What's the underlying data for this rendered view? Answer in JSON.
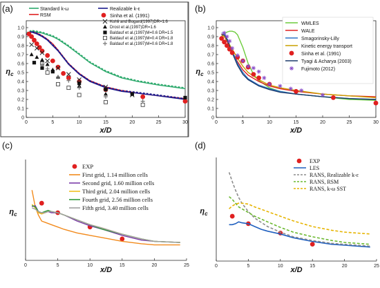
{
  "chart_data": [
    {
      "type": "line",
      "panel_label": "(a)",
      "xlabel": "x/D",
      "ylabel": "ηc",
      "xlim": [
        0,
        30
      ],
      "ylim": [
        0,
        1
      ],
      "xticks": [
        0,
        5,
        10,
        15,
        20,
        25,
        30
      ],
      "yticks": [
        0,
        0.1,
        0.2,
        0.3,
        0.4,
        0.5,
        0.6,
        0.7,
        0.8,
        0.9,
        1
      ],
      "grid": false,
      "legend_position": "top",
      "series": [
        {
          "name": "Standard k-ω",
          "color": "#2aa86a",
          "style": "solid",
          "x": [
            0,
            1,
            2,
            3,
            4,
            5,
            6,
            8,
            10,
            12,
            15,
            18,
            21,
            25,
            30
          ],
          "y": [
            0.93,
            0.96,
            0.95,
            0.94,
            0.92,
            0.9,
            0.87,
            0.79,
            0.7,
            0.61,
            0.51,
            0.44,
            0.4,
            0.36,
            0.32
          ]
        },
        {
          "name": "Standard k-ω (dashed)",
          "color": "#2aa86a",
          "style": "dashed",
          "x": [
            0,
            1,
            2,
            3,
            4,
            5,
            6,
            8,
            10,
            12,
            15,
            18,
            21,
            25,
            30
          ],
          "y": [
            0.94,
            0.97,
            0.96,
            0.95,
            0.93,
            0.91,
            0.88,
            0.8,
            0.71,
            0.62,
            0.52,
            0.45,
            0.41,
            0.37,
            0.33
          ]
        },
        {
          "name": "RSM",
          "color": "#e02020",
          "style": "solid",
          "x": [
            0,
            1,
            2,
            3,
            4,
            5,
            6,
            8,
            10,
            12,
            15,
            18,
            21,
            25,
            30
          ],
          "y": [
            0.92,
            0.95,
            0.94,
            0.91,
            0.87,
            0.82,
            0.75,
            0.6,
            0.49,
            0.41,
            0.34,
            0.3,
            0.27,
            0.24,
            0.21
          ]
        },
        {
          "name": "Realizable k-ε",
          "color": "#1a1a8c",
          "style": "solid",
          "x": [
            0,
            1,
            2,
            3,
            4,
            5,
            6,
            8,
            10,
            12,
            15,
            18,
            21,
            25,
            30
          ],
          "y": [
            0.92,
            0.95,
            0.93,
            0.9,
            0.86,
            0.8,
            0.74,
            0.59,
            0.48,
            0.4,
            0.33,
            0.29,
            0.27,
            0.24,
            0.2
          ]
        },
        {
          "name": "Realizable k-ε (dashed)",
          "color": "#1a1a8c",
          "style": "dashed",
          "x": [
            0,
            1,
            2,
            3,
            4,
            5,
            6,
            8,
            10,
            12,
            15,
            18,
            21,
            25,
            30
          ],
          "y": [
            0.93,
            0.96,
            0.94,
            0.91,
            0.87,
            0.81,
            0.75,
            0.6,
            0.49,
            0.41,
            0.34,
            0.3,
            0.28,
            0.25,
            0.21
          ]
        },
        {
          "name": "Sinha et al. (1991)",
          "marker": "circle",
          "color": "#e02020",
          "x": [
            0.5,
            1,
            1.5,
            2,
            2.5,
            3,
            4,
            5,
            6,
            7,
            8,
            10,
            15,
            22,
            30
          ],
          "y": [
            0.93,
            0.9,
            0.86,
            0.82,
            0.78,
            0.74,
            0.69,
            0.63,
            0.56,
            0.49,
            0.44,
            0.4,
            0.31,
            0.23,
            0.18
          ]
        },
        {
          "name": "Kohli and Bogard(1997) DR=1.6",
          "marker": "x",
          "color": "#222222",
          "x": [
            1,
            2,
            3,
            4,
            6,
            8,
            10,
            15,
            20
          ],
          "y": [
            0.81,
            0.77,
            0.72,
            0.63,
            0.55,
            0.48,
            0.42,
            0.34,
            0.25
          ]
        },
        {
          "name": "Drost et al.(1997) DR=1.6",
          "marker": "triangle",
          "color": "#111111",
          "x": [
            1,
            2,
            3,
            4,
            5,
            6,
            10,
            15
          ],
          "y": [
            0.7,
            0.67,
            0.64,
            0.59,
            0.53,
            0.45,
            0.35,
            0.26
          ]
        },
        {
          "name": "Baldauf et al.(1997) M=0.6 DR=1.5",
          "marker": "square",
          "color": "#111111",
          "x": [
            1.5,
            3,
            5,
            10,
            15,
            20,
            30
          ],
          "y": [
            0.61,
            0.55,
            0.51,
            0.38,
            0.31,
            0.26,
            0.22
          ]
        },
        {
          "name": "Baldauf et al.(1997) M=0.4 DR=1.8",
          "marker": "open-square",
          "color": "#444444",
          "x": [
            3,
            4,
            6,
            8,
            10,
            15,
            22
          ],
          "y": [
            0.6,
            0.5,
            0.37,
            0.33,
            0.25,
            0.17,
            0.14
          ]
        },
        {
          "name": "Baldauf et al.(1997) M=0.6 DR=1.8",
          "marker": "plus",
          "color": "#777777",
          "x": [
            3,
            4,
            6,
            8,
            10,
            15,
            22
          ],
          "y": [
            0.59,
            0.54,
            0.45,
            0.41,
            0.33,
            0.23,
            0.18
          ]
        }
      ]
    },
    {
      "type": "line",
      "panel_label": "(b)",
      "xlabel": "x/D",
      "ylabel": "ηc",
      "xlim": [
        0,
        30
      ],
      "ylim": [
        0,
        1
      ],
      "xticks": [
        0,
        5,
        10,
        15,
        20,
        25,
        30
      ],
      "yticks": [
        0,
        0.1,
        0.2,
        0.3,
        0.4,
        0.5,
        0.6,
        0.7,
        0.8,
        0.9,
        1
      ],
      "grid": false,
      "legend_position": "top-right",
      "series": [
        {
          "name": "WMLES",
          "color": "#6ccc3c",
          "style": "solid",
          "x": [
            1,
            1.5,
            2,
            2.5,
            3,
            3.5,
            4,
            5,
            6,
            7,
            8,
            10,
            12,
            15,
            20,
            25,
            30
          ],
          "y": [
            0.9,
            0.93,
            0.95,
            0.96,
            0.96,
            0.95,
            0.92,
            0.78,
            0.6,
            0.48,
            0.41,
            0.33,
            0.29,
            0.26,
            0.23,
            0.2,
            0.19
          ]
        },
        {
          "name": "WALE",
          "color": "#e02020",
          "style": "solid",
          "x": [
            1,
            1.5,
            2,
            3,
            4,
            5,
            6,
            8,
            10,
            12,
            15,
            20,
            25,
            30
          ],
          "y": [
            0.93,
            0.9,
            0.85,
            0.73,
            0.62,
            0.53,
            0.47,
            0.4,
            0.35,
            0.32,
            0.29,
            0.26,
            0.24,
            0.23
          ]
        },
        {
          "name": "Smagorinsky-Lilly",
          "color": "#2f75c7",
          "style": "solid",
          "x": [
            1,
            1.5,
            2,
            3,
            4,
            5,
            6,
            8,
            10,
            12,
            15,
            20,
            25,
            30
          ],
          "y": [
            0.94,
            0.94,
            0.88,
            0.74,
            0.6,
            0.5,
            0.43,
            0.36,
            0.32,
            0.29,
            0.26,
            0.23,
            0.21,
            0.2
          ]
        },
        {
          "name": "Kinetic energy transport",
          "color": "#c9a000",
          "style": "solid",
          "x": [
            1,
            1.5,
            2,
            3,
            4,
            5,
            6,
            8,
            10,
            12,
            15,
            20,
            25,
            30
          ],
          "y": [
            0.92,
            0.9,
            0.86,
            0.76,
            0.66,
            0.57,
            0.5,
            0.42,
            0.36,
            0.33,
            0.3,
            0.26,
            0.24,
            0.22
          ]
        },
        {
          "name": "Tyagi & Acharya (2003)",
          "color": "#1b3a6b",
          "style": "solid",
          "x": [
            1,
            1.5,
            2,
            3,
            4,
            5,
            6,
            8,
            10,
            12,
            15,
            20,
            25,
            30
          ],
          "y": [
            0.92,
            0.92,
            0.87,
            0.72,
            0.58,
            0.48,
            0.42,
            0.35,
            0.31,
            0.28,
            0.26,
            0.23,
            0.21,
            0.2
          ]
        },
        {
          "name": "Sinha et al. (1991)",
          "marker": "circle",
          "color": "#e02020",
          "x": [
            1,
            1.5,
            2,
            2.5,
            3,
            4,
            5,
            6,
            7,
            8,
            10,
            15,
            22,
            30
          ],
          "y": [
            0.88,
            0.84,
            0.8,
            0.76,
            0.72,
            0.67,
            0.63,
            0.56,
            0.48,
            0.44,
            0.37,
            0.29,
            0.22,
            0.16
          ]
        },
        {
          "name": "Fujimoto (2012)",
          "marker": "asterisk",
          "color": "#8a4fc9",
          "x": [
            1.5,
            2,
            2.5,
            3,
            4,
            5,
            6,
            7,
            8,
            9,
            10,
            12,
            14,
            16,
            20
          ],
          "y": [
            0.94,
            0.9,
            0.85,
            0.77,
            0.69,
            0.63,
            0.57,
            0.55,
            0.51,
            0.44,
            0.37,
            0.35,
            0.32,
            0.3,
            0.25
          ]
        }
      ]
    },
    {
      "type": "line",
      "panel_label": "(c)",
      "xlabel": "x/D",
      "ylabel": "ηc",
      "xlim": [
        0,
        25
      ],
      "ylim": [
        0,
        0.8
      ],
      "xticks": [
        0,
        5,
        10,
        15,
        20,
        25
      ],
      "grid": false,
      "legend_position": "top-center",
      "series": [
        {
          "name": "EXP",
          "marker": "circle",
          "color": "#e02020",
          "x": [
            2.5,
            5,
            10,
            15
          ],
          "y": [
            0.48,
            0.4,
            0.28,
            0.18
          ]
        },
        {
          "name": "First grid, 1.14 million cells",
          "color": "#f28a1c",
          "style": "solid",
          "x": [
            1,
            1.5,
            2,
            2.5,
            3,
            4,
            5,
            6,
            8,
            10,
            12,
            15,
            18,
            20,
            24
          ],
          "y": [
            0.59,
            0.45,
            0.38,
            0.33,
            0.32,
            0.3,
            0.28,
            0.26,
            0.23,
            0.21,
            0.19,
            0.16,
            0.14,
            0.13,
            0.13
          ]
        },
        {
          "name": "Second grid, 1.60 million cells",
          "color": "#7b3ca8",
          "style": "solid",
          "x": [
            1,
            1.5,
            2,
            2.5,
            3,
            3.5,
            4,
            5,
            6,
            8,
            10,
            12,
            15,
            18,
            20,
            24
          ],
          "y": [
            0.45,
            0.46,
            0.41,
            0.39,
            0.4,
            0.41,
            0.4,
            0.4,
            0.38,
            0.33,
            0.29,
            0.26,
            0.21,
            0.17,
            0.16,
            0.15
          ]
        },
        {
          "name": "Third grid, 2.04 million cells",
          "color": "#f0c020",
          "style": "solid",
          "x": [
            1,
            1.5,
            2,
            2.5,
            3,
            3.5,
            4,
            5,
            6,
            8,
            10,
            12,
            15,
            18,
            20,
            24
          ],
          "y": [
            0.47,
            0.44,
            0.4,
            0.39,
            0.4,
            0.41,
            0.41,
            0.4,
            0.38,
            0.34,
            0.3,
            0.27,
            0.22,
            0.18,
            0.16,
            0.15
          ]
        },
        {
          "name": "Fourth grid, 2.56 million cells",
          "color": "#2e9a3a",
          "style": "solid",
          "x": [
            1,
            1.5,
            2,
            2.5,
            3,
            3.5,
            4,
            5,
            6,
            8,
            10,
            12,
            15,
            18,
            20,
            24
          ],
          "y": [
            0.46,
            0.45,
            0.41,
            0.4,
            0.41,
            0.42,
            0.41,
            0.4,
            0.38,
            0.34,
            0.3,
            0.26,
            0.22,
            0.18,
            0.16,
            0.15
          ]
        },
        {
          "name": "Fifth grid, 3.40 million cells",
          "color": "#a0a0a0",
          "style": "solid",
          "x": [
            1,
            1.5,
            2,
            2.5,
            3,
            3.5,
            4,
            5,
            6,
            8,
            10,
            12,
            15,
            18,
            20,
            24
          ],
          "y": [
            0.44,
            0.43,
            0.41,
            0.4,
            0.4,
            0.41,
            0.41,
            0.4,
            0.38,
            0.34,
            0.3,
            0.27,
            0.22,
            0.18,
            0.16,
            0.15
          ]
        }
      ]
    },
    {
      "type": "line",
      "panel_label": "(d)",
      "xlabel": "x/D",
      "ylabel": "ηc",
      "xlim": [
        0,
        25
      ],
      "ylim": [
        0,
        1.05
      ],
      "xticks": [
        0,
        5,
        10,
        15,
        20,
        25
      ],
      "grid": false,
      "legend_position": "top-right",
      "series": [
        {
          "name": "EXP",
          "marker": "circle",
          "color": "#e02020",
          "x": [
            2.5,
            5,
            10,
            15
          ],
          "y": [
            0.48,
            0.4,
            0.3,
            0.18
          ]
        },
        {
          "name": "LES",
          "color": "#1f5fbf",
          "style": "solid",
          "x": [
            2,
            2.5,
            3,
            3.5,
            4,
            5,
            6,
            7,
            8,
            10,
            12,
            15,
            18,
            20,
            24
          ],
          "y": [
            0.39,
            0.39,
            0.4,
            0.42,
            0.41,
            0.4,
            0.37,
            0.34,
            0.32,
            0.29,
            0.25,
            0.21,
            0.18,
            0.17,
            0.15
          ]
        },
        {
          "name": "RANS, Realizable k-ε",
          "color": "#8c8c8c",
          "style": "dashed",
          "x": [
            2,
            2.5,
            3,
            3.5,
            4,
            5,
            6,
            8,
            10,
            12,
            15,
            18,
            20,
            24
          ],
          "y": [
            0.95,
            0.85,
            0.76,
            0.68,
            0.62,
            0.53,
            0.46,
            0.37,
            0.31,
            0.26,
            0.22,
            0.19,
            0.18,
            0.16
          ]
        },
        {
          "name": "RANS, RSM",
          "color": "#6ab82e",
          "style": "dashed",
          "x": [
            2,
            2.5,
            3,
            3.5,
            4,
            5,
            6,
            8,
            10,
            12,
            15,
            18,
            20,
            24
          ],
          "y": [
            0.69,
            0.66,
            0.62,
            0.58,
            0.56,
            0.52,
            0.48,
            0.42,
            0.36,
            0.31,
            0.26,
            0.22,
            0.2,
            0.18
          ]
        },
        {
          "name": "RANS, k-ω SST",
          "color": "#e6b400",
          "style": "dashed",
          "x": [
            2,
            2.5,
            3,
            3.5,
            4,
            5,
            6,
            8,
            10,
            12,
            15,
            18,
            20,
            24
          ],
          "y": [
            0.56,
            0.59,
            0.61,
            0.62,
            0.62,
            0.61,
            0.58,
            0.53,
            0.48,
            0.43,
            0.37,
            0.33,
            0.31,
            0.29
          ]
        }
      ]
    }
  ]
}
